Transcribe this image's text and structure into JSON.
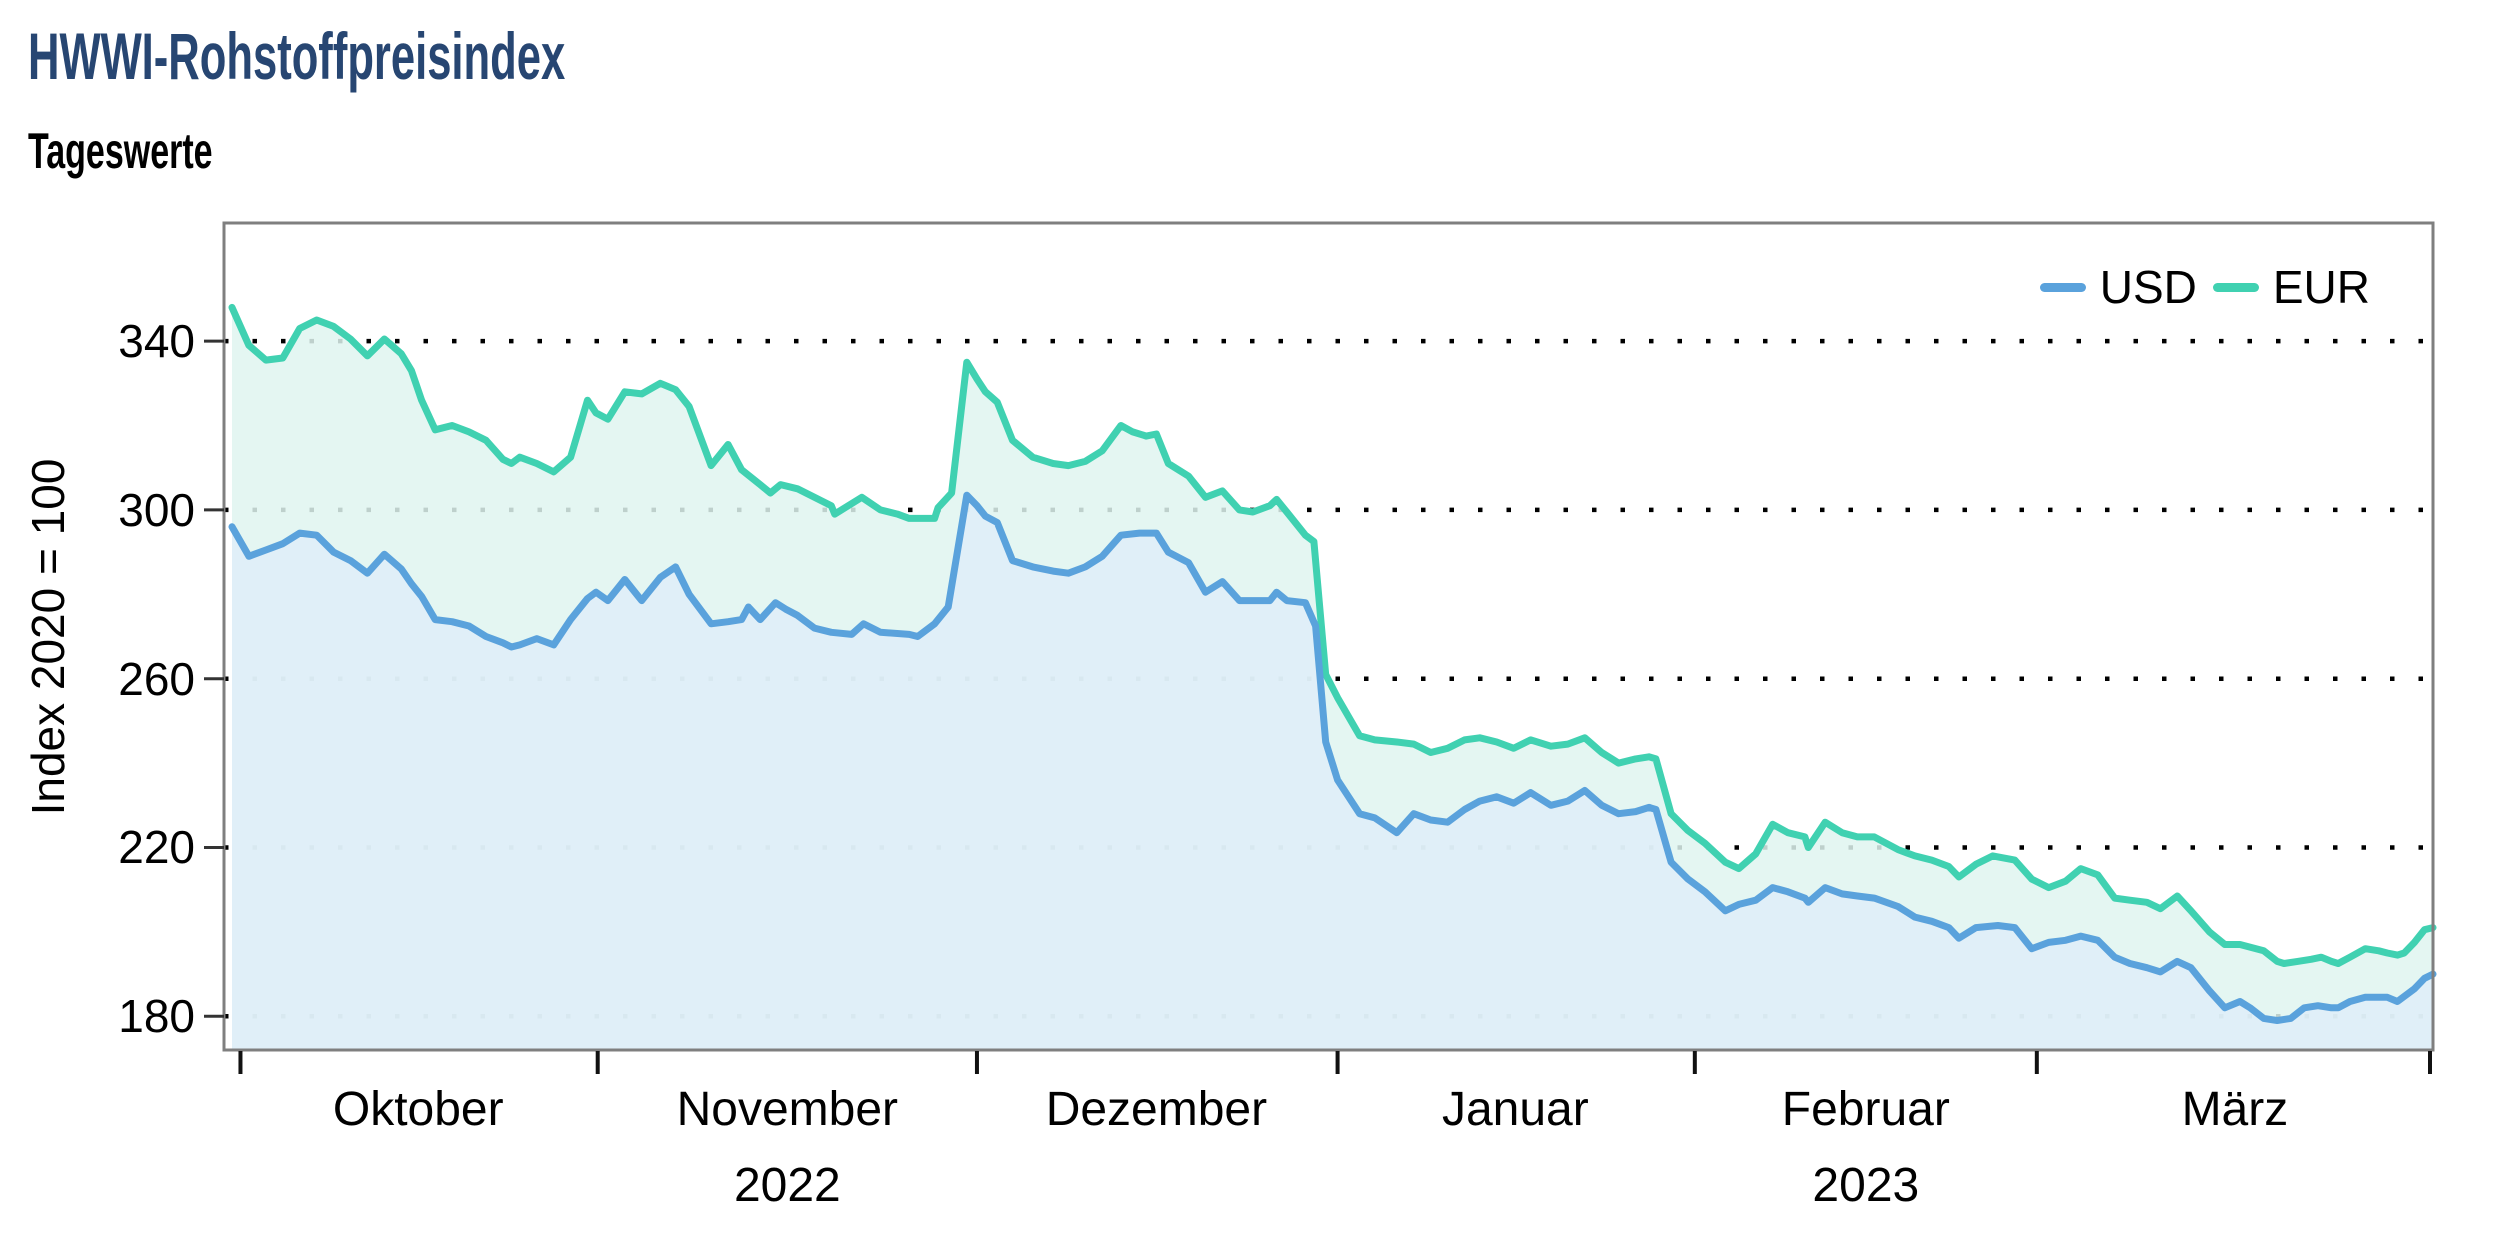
{
  "header": {
    "title": "HWWI-Rohstoffpreisindex",
    "subtitle": "Tageswerte"
  },
  "colors": {
    "title": "#274672",
    "usd_line": "#5AA2DC",
    "eur_line": "#40D1B1",
    "usd_fill": "#DEEDF9",
    "eur_fill": "#DFF5F0",
    "grid": "#000000",
    "plot_border": "#7F7F7F",
    "background": "#FFFFFF"
  },
  "chart_data": {
    "type": "line",
    "title": "HWWI-Rohstoffpreisindex",
    "subtitle": "Tageswerte",
    "ylabel": "Index 2020 = 100",
    "ylim": [
      172,
      368
    ],
    "yticks": [
      180,
      220,
      260,
      300,
      340
    ],
    "grid": "horizontal dotted",
    "x_unit": "trading days since 2022-09-30",
    "xlim": [
      0,
      130
    ],
    "months": [
      {
        "label": "Oktober",
        "year": "",
        "tick_t": 0.5,
        "center_t": 11.0
      },
      {
        "label": "November",
        "year": "2022",
        "tick_t": 21.6,
        "center_t": 32.8
      },
      {
        "label": "Dezember",
        "year": "",
        "tick_t": 44.0,
        "center_t": 54.6
      },
      {
        "label": "Januar",
        "year": "",
        "tick_t": 65.3,
        "center_t": 75.8
      },
      {
        "label": "Februar",
        "year": "2023",
        "tick_t": 86.4,
        "center_t": 96.5
      },
      {
        "label": "März",
        "year": "",
        "tick_t": 106.6,
        "center_t": 118.3
      }
    ],
    "end_tick_t": 130,
    "legend": [
      {
        "label": "USD",
        "color": "#5AA2DC"
      },
      {
        "label": "EUR",
        "color": "#40D1B1"
      }
    ],
    "legend_position": "top-right inside plot",
    "series": [
      {
        "name": "USD",
        "color": "#5AA2DC",
        "points": [
          [
            0,
            296
          ],
          [
            1,
            289
          ],
          [
            2,
            290.5
          ],
          [
            3,
            292
          ],
          [
            4,
            294.5
          ],
          [
            5,
            294
          ],
          [
            6,
            290
          ],
          [
            7,
            288
          ],
          [
            8,
            285
          ],
          [
            9,
            289.5
          ],
          [
            10,
            286
          ],
          [
            10.6,
            282.5
          ],
          [
            11.2,
            279.5
          ],
          [
            12,
            274
          ],
          [
            13,
            273.5
          ],
          [
            14,
            272.5
          ],
          [
            15,
            270
          ],
          [
            16,
            268.5
          ],
          [
            16.5,
            267.5
          ],
          [
            17,
            268
          ],
          [
            18,
            269.5
          ],
          [
            19,
            268
          ],
          [
            20,
            274
          ],
          [
            21,
            279
          ],
          [
            21.5,
            280.5
          ],
          [
            22.2,
            278.5
          ],
          [
            23.2,
            283.5
          ],
          [
            24.2,
            278.5
          ],
          [
            25.3,
            284
          ],
          [
            26.2,
            286.5
          ],
          [
            27,
            280
          ],
          [
            28.3,
            273
          ],
          [
            29.3,
            273.5
          ],
          [
            30.1,
            274
          ],
          [
            30.5,
            277
          ],
          [
            31.2,
            274
          ],
          [
            32.1,
            278
          ],
          [
            32.7,
            276.5
          ],
          [
            33.4,
            275
          ],
          [
            34.4,
            272
          ],
          [
            35.4,
            271
          ],
          [
            36.6,
            270.5
          ],
          [
            37.3,
            273
          ],
          [
            38.3,
            271
          ],
          [
            40,
            270.5
          ],
          [
            40.5,
            270
          ],
          [
            41.5,
            273
          ],
          [
            42.3,
            277
          ],
          [
            43.4,
            303.5
          ],
          [
            44,
            301
          ],
          [
            44.5,
            298.5
          ],
          [
            45.2,
            297
          ],
          [
            46.1,
            288
          ],
          [
            47.3,
            286.5
          ],
          [
            48.5,
            285.5
          ],
          [
            49.4,
            285
          ],
          [
            50.4,
            286.5
          ],
          [
            51.4,
            289
          ],
          [
            52.5,
            294
          ],
          [
            53.6,
            294.5
          ],
          [
            54.6,
            294.5
          ],
          [
            55.3,
            290
          ],
          [
            56.5,
            287.5
          ],
          [
            57.5,
            280.5
          ],
          [
            58.5,
            283
          ],
          [
            59.5,
            278.5
          ],
          [
            60.3,
            278.5
          ],
          [
            61.3,
            278.5
          ],
          [
            61.7,
            280.5
          ],
          [
            62.3,
            278.5
          ],
          [
            63.4,
            278
          ],
          [
            64,
            272.5
          ],
          [
            64.6,
            245
          ],
          [
            65.3,
            236
          ],
          [
            66.6,
            228
          ],
          [
            67.5,
            227
          ],
          [
            68.8,
            223.5
          ],
          [
            69.8,
            228
          ],
          [
            70.8,
            226.5
          ],
          [
            71.8,
            226
          ],
          [
            72.8,
            229
          ],
          [
            73.7,
            231
          ],
          [
            74.7,
            232
          ],
          [
            75.7,
            230.5
          ],
          [
            76.7,
            233
          ],
          [
            77.9,
            230
          ],
          [
            78.9,
            231
          ],
          [
            79.9,
            233.5
          ],
          [
            80.9,
            230
          ],
          [
            81.9,
            228
          ],
          [
            82.9,
            228.5
          ],
          [
            83.7,
            229.5
          ],
          [
            84.1,
            229
          ],
          [
            85,
            216.5
          ],
          [
            86,
            212.5
          ],
          [
            87,
            209.5
          ],
          [
            88.2,
            205
          ],
          [
            89,
            206.5
          ],
          [
            90,
            207.5
          ],
          [
            91,
            210.5
          ],
          [
            91.9,
            209.5
          ],
          [
            92.9,
            208
          ],
          [
            93.1,
            207
          ],
          [
            94.1,
            210.5
          ],
          [
            95.1,
            209
          ],
          [
            96,
            208.5
          ],
          [
            97,
            208
          ],
          [
            98.4,
            206
          ],
          [
            99.4,
            203.5
          ],
          [
            100.4,
            202.5
          ],
          [
            101.4,
            201
          ],
          [
            102,
            198.5
          ],
          [
            103,
            201
          ],
          [
            104.3,
            201.5
          ],
          [
            105.3,
            201
          ],
          [
            106.3,
            196
          ],
          [
            107.3,
            197.5
          ],
          [
            108.3,
            198
          ],
          [
            109.2,
            199
          ],
          [
            110.2,
            198
          ],
          [
            111.2,
            194
          ],
          [
            112.1,
            192.5
          ],
          [
            113.1,
            191.5
          ],
          [
            113.9,
            190.5
          ],
          [
            114.9,
            193
          ],
          [
            115.7,
            191.5
          ],
          [
            116.8,
            186
          ],
          [
            117.7,
            182
          ],
          [
            118.6,
            183.5
          ],
          [
            119.2,
            182
          ],
          [
            120,
            179.5
          ],
          [
            120.8,
            179
          ],
          [
            121.6,
            179.5
          ],
          [
            122.4,
            182
          ],
          [
            123.2,
            182.5
          ],
          [
            124,
            182
          ],
          [
            124.4,
            182
          ],
          [
            125.1,
            183.5
          ],
          [
            126,
            184.5
          ],
          [
            127.3,
            184.5
          ],
          [
            127.9,
            183.5
          ],
          [
            128.9,
            186.5
          ],
          [
            129.5,
            189
          ],
          [
            130,
            190
          ]
        ]
      },
      {
        "name": "EUR",
        "color": "#40D1B1",
        "points": [
          [
            0,
            348
          ],
          [
            1,
            339
          ],
          [
            2,
            335.5
          ],
          [
            3,
            336
          ],
          [
            4,
            343
          ],
          [
            5,
            345
          ],
          [
            6,
            343.5
          ],
          [
            7,
            340.5
          ],
          [
            8,
            336.5
          ],
          [
            9,
            340.5
          ],
          [
            10,
            337
          ],
          [
            10.6,
            333
          ],
          [
            11.2,
            326
          ],
          [
            12,
            319
          ],
          [
            13,
            320
          ],
          [
            14,
            318.5
          ],
          [
            15,
            316.5
          ],
          [
            16,
            312
          ],
          [
            16.5,
            311
          ],
          [
            17,
            312.5
          ],
          [
            18,
            311
          ],
          [
            19,
            309
          ],
          [
            20,
            312.5
          ],
          [
            21,
            326
          ],
          [
            21.5,
            323
          ],
          [
            22.2,
            321.5
          ],
          [
            23.2,
            328
          ],
          [
            24.2,
            327.5
          ],
          [
            25.3,
            330
          ],
          [
            26.2,
            328.5
          ],
          [
            27,
            324.5
          ],
          [
            28.3,
            310.5
          ],
          [
            29.3,
            315.5
          ],
          [
            30.1,
            309.5
          ],
          [
            31.2,
            306
          ],
          [
            31.8,
            304
          ],
          [
            32.4,
            306
          ],
          [
            33.4,
            305
          ],
          [
            34.4,
            303
          ],
          [
            35.4,
            301
          ],
          [
            35.6,
            299
          ],
          [
            37.2,
            303
          ],
          [
            38.3,
            300
          ],
          [
            39.3,
            299
          ],
          [
            40,
            298
          ],
          [
            41.5,
            298
          ],
          [
            41.7,
            300.5
          ],
          [
            42.5,
            304
          ],
          [
            43.4,
            335
          ],
          [
            44,
            331
          ],
          [
            44.5,
            328
          ],
          [
            45.2,
            325.5
          ],
          [
            46.1,
            316.5
          ],
          [
            47.3,
            312.5
          ],
          [
            48.5,
            311
          ],
          [
            49.4,
            310.5
          ],
          [
            50.4,
            311.5
          ],
          [
            51.4,
            314
          ],
          [
            52.5,
            320
          ],
          [
            53.2,
            318.5
          ],
          [
            54,
            317.5
          ],
          [
            54.6,
            318
          ],
          [
            55.3,
            311
          ],
          [
            56.5,
            308
          ],
          [
            57.5,
            303
          ],
          [
            58.5,
            304.5
          ],
          [
            59.5,
            300
          ],
          [
            60.3,
            299.5
          ],
          [
            61.3,
            301
          ],
          [
            61.7,
            302.5
          ],
          [
            62.3,
            299.5
          ],
          [
            63.4,
            294
          ],
          [
            63.9,
            292.5
          ],
          [
            64.6,
            261
          ],
          [
            65.3,
            255.5
          ],
          [
            66.6,
            246.5
          ],
          [
            67.5,
            245.5
          ],
          [
            68.8,
            245
          ],
          [
            69.8,
            244.5
          ],
          [
            70.8,
            242.5
          ],
          [
            71.8,
            243.5
          ],
          [
            72.8,
            245.5
          ],
          [
            73.7,
            246
          ],
          [
            74.7,
            245
          ],
          [
            75.7,
            243.5
          ],
          [
            76.7,
            245.5
          ],
          [
            77.9,
            244
          ],
          [
            78.9,
            244.5
          ],
          [
            79.9,
            246
          ],
          [
            80.9,
            242.5
          ],
          [
            81.9,
            240
          ],
          [
            82.9,
            241
          ],
          [
            83.7,
            241.5
          ],
          [
            84.1,
            241
          ],
          [
            85,
            228
          ],
          [
            86,
            224
          ],
          [
            87,
            221
          ],
          [
            88.2,
            216.5
          ],
          [
            89,
            215
          ],
          [
            90,
            218.5
          ],
          [
            91,
            225.5
          ],
          [
            91.9,
            223.5
          ],
          [
            92.9,
            222.5
          ],
          [
            93.1,
            220
          ],
          [
            94.1,
            226
          ],
          [
            95.1,
            223.5
          ],
          [
            96,
            222.5
          ],
          [
            97,
            222.5
          ],
          [
            98.4,
            219.5
          ],
          [
            99.4,
            218
          ],
          [
            100.4,
            217
          ],
          [
            101.4,
            215.5
          ],
          [
            102,
            213
          ],
          [
            103,
            216
          ],
          [
            104,
            218
          ],
          [
            105.3,
            217
          ],
          [
            106.3,
            212.5
          ],
          [
            107.3,
            210.5
          ],
          [
            108.3,
            212
          ],
          [
            109.2,
            215
          ],
          [
            110.2,
            213.5
          ],
          [
            111.2,
            208
          ],
          [
            112.1,
            207.5
          ],
          [
            113.1,
            207
          ],
          [
            113.9,
            205.5
          ],
          [
            114.9,
            208.5
          ],
          [
            115.7,
            205
          ],
          [
            116.8,
            200
          ],
          [
            117.7,
            197
          ],
          [
            118.6,
            197
          ],
          [
            120,
            195.5
          ],
          [
            120.8,
            193
          ],
          [
            121.2,
            192.5
          ],
          [
            122,
            193
          ],
          [
            122.8,
            193.5
          ],
          [
            123.4,
            194
          ],
          [
            124,
            193
          ],
          [
            124.4,
            192.5
          ],
          [
            125.1,
            194
          ],
          [
            126,
            196
          ],
          [
            126.8,
            195.5
          ],
          [
            127.3,
            195
          ],
          [
            127.9,
            194.5
          ],
          [
            128.3,
            195
          ],
          [
            128.9,
            197.5
          ],
          [
            129.5,
            200.5
          ],
          [
            130,
            201
          ]
        ]
      }
    ]
  }
}
